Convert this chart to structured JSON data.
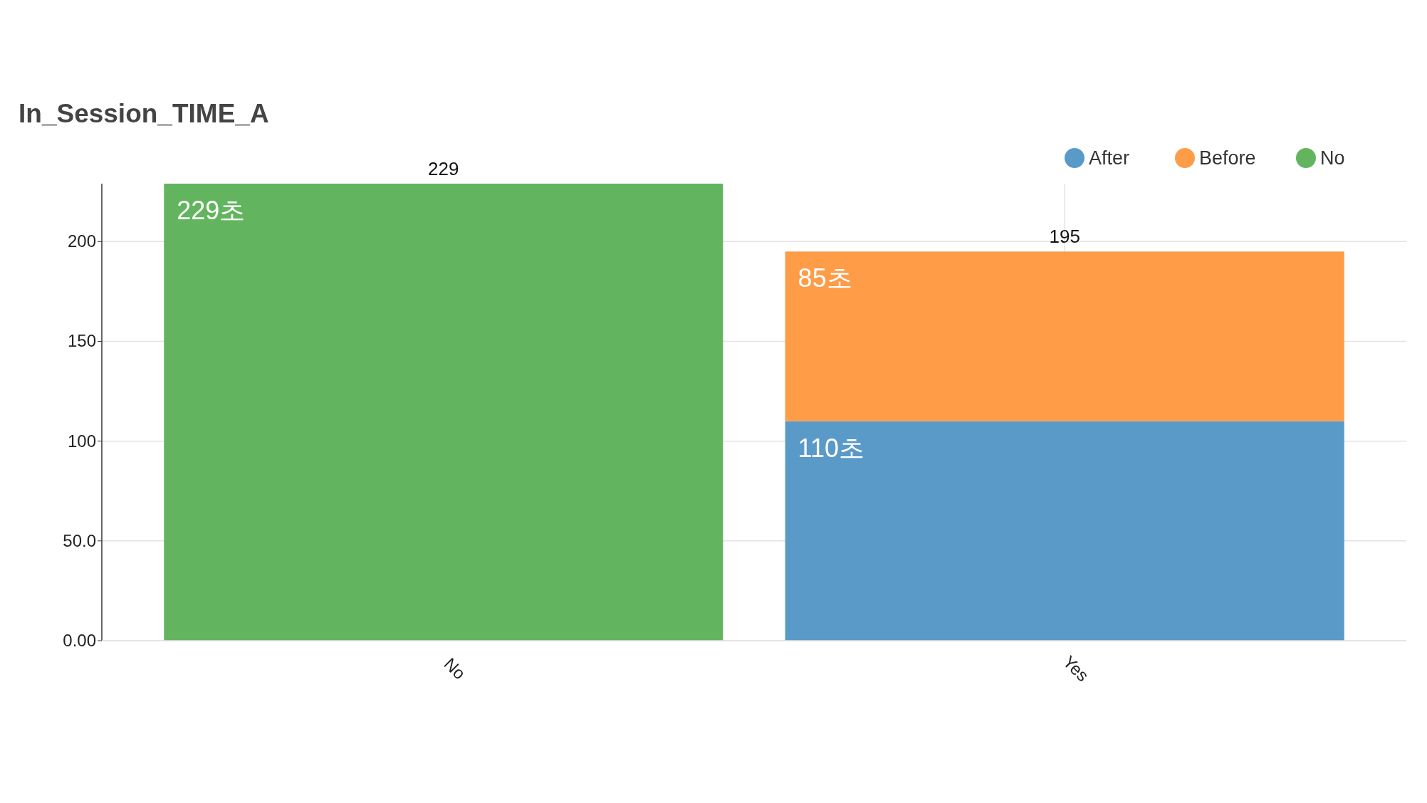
{
  "chart_data": {
    "type": "bar",
    "title": "In_Session_TIME_A",
    "categories": [
      "No",
      "Yes"
    ],
    "series": [
      {
        "name": "After",
        "color": "#5a9ac8",
        "values": [
          null,
          110
        ],
        "value_labels": [
          null,
          "110초"
        ]
      },
      {
        "name": "Before",
        "color": "#fe9c48",
        "values": [
          null,
          85
        ],
        "value_labels": [
          null,
          "85초"
        ]
      },
      {
        "name": "No",
        "color": "#62b55e",
        "values": [
          229,
          null
        ],
        "value_labels": [
          "229초",
          null
        ]
      }
    ],
    "stacked": true,
    "totals": [
      "229",
      "195"
    ],
    "ylim": [
      0,
      229
    ],
    "yticks": [
      {
        "value": 0,
        "label": "0.00"
      },
      {
        "value": 50,
        "label": "50.0"
      },
      100,
      150,
      200
    ],
    "grid": true,
    "legend": "top right"
  }
}
